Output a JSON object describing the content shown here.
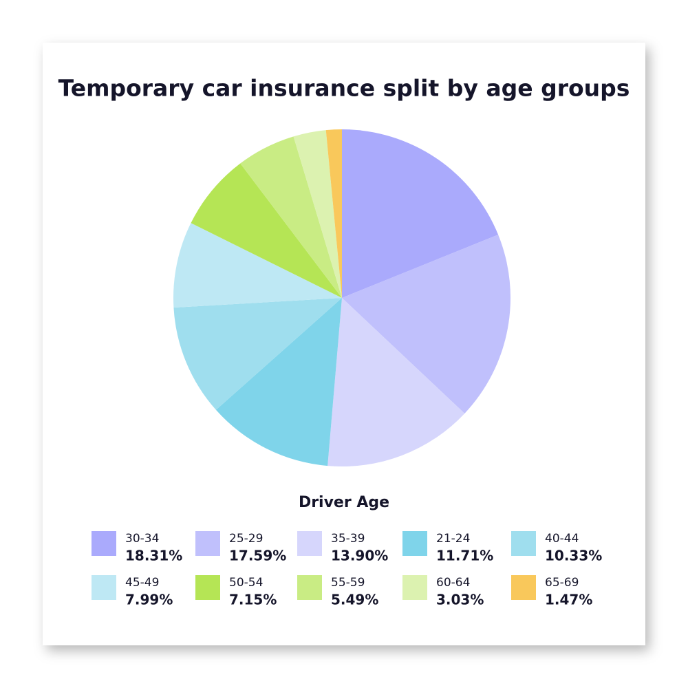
{
  "chart_data": {
    "type": "pie",
    "title": "Temporary car insurance split by age groups",
    "legend_title": "Driver Age",
    "categories": [
      "30-34",
      "25-29",
      "35-39",
      "21-24",
      "40-44",
      "45-49",
      "50-54",
      "55-59",
      "60-64",
      "65-69"
    ],
    "values": [
      18.31,
      17.59,
      13.9,
      11.71,
      10.33,
      7.99,
      7.15,
      5.49,
      3.03,
      1.47
    ],
    "value_labels": [
      "18.31%",
      "17.59%",
      "13.90%",
      "11.71%",
      "10.33%",
      "7.99%",
      "7.15%",
      "5.49%",
      "3.03%",
      "1.47%"
    ],
    "colors": [
      "#aaaafc",
      "#c0c0fc",
      "#d6d6fc",
      "#7fd4ea",
      "#9fdeee",
      "#bee8f4",
      "#b5e555",
      "#c9ec84",
      "#dcf2b0",
      "#f9c85b"
    ]
  }
}
